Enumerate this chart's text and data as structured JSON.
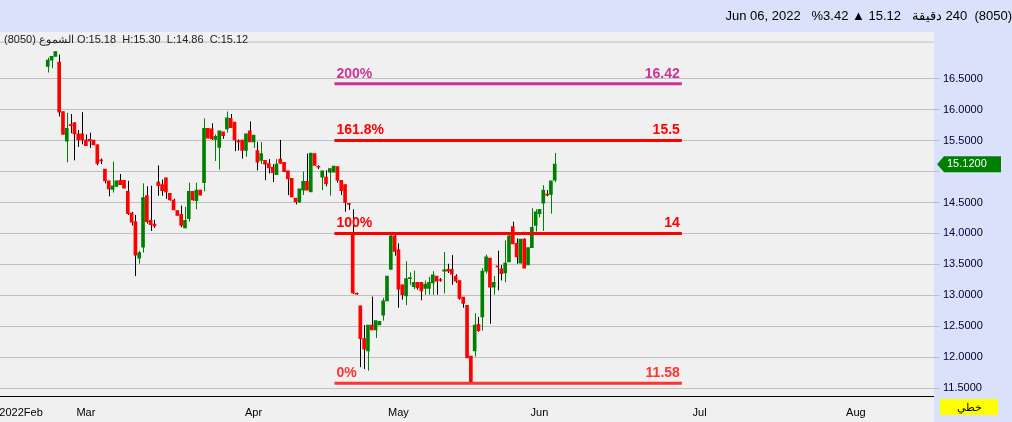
{
  "chart_data": {
    "type": "candlestick",
    "title": "(8050)  240 دقيقة   15.12 ▲ 3.42%   Jun 06, 2022",
    "subtitle": "الشموع (8050) O:15.18  H:15.30  L:14.86  C:15.12",
    "categories": [
      null,
      null,
      null,
      null,
      null,
      "2022Feb",
      null,
      null,
      null,
      null,
      null,
      null,
      null,
      null,
      null,
      null,
      null,
      null,
      null,
      null,
      null,
      null,
      "Mar",
      null,
      null,
      null,
      null,
      null,
      null,
      null,
      null,
      null,
      null,
      null,
      null,
      null,
      null,
      null,
      null,
      null,
      null,
      null,
      null,
      null,
      null,
      null,
      null,
      null,
      null,
      null,
      null,
      null,
      null,
      null,
      null,
      null,
      null,
      null,
      null,
      null,
      null,
      null,
      null,
      null,
      null,
      null,
      "Apr",
      null,
      null,
      null,
      null,
      null,
      null,
      null,
      null,
      null,
      null,
      null,
      null,
      null,
      null,
      null,
      null,
      null,
      null,
      null,
      null,
      null,
      null,
      null,
      null,
      null,
      null,
      null,
      null,
      null,
      null,
      null,
      null,
      null,
      null,
      null,
      null,
      null,
      "May",
      null,
      null,
      null,
      null,
      null,
      null,
      null,
      null,
      null,
      null,
      null,
      null,
      null,
      null,
      null,
      null,
      null,
      null,
      null,
      null,
      null,
      null,
      null,
      null,
      null,
      null,
      null,
      null,
      null,
      null,
      null,
      null,
      null,
      null,
      null,
      null,
      "Jun",
      null,
      null,
      null,
      null,
      null,
      null,
      null,
      null,
      null,
      null,
      null,
      null,
      null,
      null,
      null,
      null,
      null,
      null,
      null,
      null,
      null,
      null,
      null,
      null,
      null,
      null,
      null,
      null,
      null,
      null,
      null,
      null,
      null,
      null,
      null,
      null,
      null,
      null,
      null,
      null,
      null,
      "Jul",
      null,
      null,
      null,
      null,
      null,
      null,
      null,
      null,
      null,
      null,
      null,
      null,
      null,
      null,
      null,
      null,
      null,
      null,
      null,
      null,
      null,
      null,
      null,
      null,
      null,
      null,
      null,
      null,
      null,
      null,
      null,
      null,
      null,
      null,
      null,
      null,
      null,
      null,
      null,
      null,
      "Aug",
      null,
      null,
      null,
      null,
      null,
      null,
      null,
      null,
      null,
      null,
      null,
      null,
      null,
      null,
      null,
      null,
      null,
      null,
      null,
      null
    ],
    "ohlc": [
      null,
      null,
      null,
      null,
      null,
      null,
      null,
      null,
      null,
      null,
      null,
      null,
      [
        16.7,
        16.84,
        16.6,
        16.8
      ],
      [
        16.8,
        16.86,
        16.67,
        16.86
      ],
      [
        16.86,
        16.94,
        16.86,
        16.94
      ],
      [
        16.77,
        16.89,
        15.89,
        15.96
      ],
      [
        15.97,
        15.97,
        15.6,
        15.6
      ],
      [
        15.49,
        15.95,
        15.15,
        15.7
      ],
      [
        15.76,
        15.93,
        15.62,
        15.74
      ],
      [
        15.79,
        15.79,
        15.18,
        15.61
      ],
      [
        15.61,
        15.67,
        15.4,
        15.51
      ],
      [
        15.61,
        15.96,
        15.44,
        15.51
      ],
      [
        15.51,
        15.6,
        15.42,
        15.42
      ],
      [
        15.52,
        15.63,
        15.38,
        15.49
      ],
      [
        15.51,
        15.51,
        15.43,
        15.43
      ],
      [
        15.43,
        15.44,
        15.1,
        15.13
      ],
      [
        15.19,
        15.21,
        15.12,
        15.17
      ],
      [
        15.04,
        15.04,
        14.81,
        14.85
      ],
      [
        14.85,
        14.85,
        14.6,
        14.72
      ],
      [
        14.71,
        15.16,
        14.66,
        14.77
      ],
      [
        14.76,
        14.85,
        14.76,
        14.85
      ],
      [
        14.86,
        14.96,
        14.79,
        14.79
      ],
      [
        14.86,
        14.86,
        14.73,
        14.73
      ],
      [
        14.68,
        14.85,
        14.3,
        14.32
      ],
      [
        14.33,
        14.35,
        14.13,
        14.18
      ],
      [
        14.19,
        14.3,
        13.31,
        13.65
      ],
      [
        13.6,
        13.72,
        13.51,
        13.69
      ],
      [
        13.78,
        14.81,
        13.69,
        14.58
      ],
      [
        14.61,
        14.76,
        14.16,
        14.19
      ],
      [
        14.21,
        14.77,
        14.04,
        14.14
      ],
      [
        14.15,
        14.22,
        14.09,
        14.12
      ],
      [
        14.83,
        15.1,
        14.61,
        14.77
      ],
      [
        14.79,
        14.87,
        14.61,
        14.69
      ],
      [
        14.9,
        14.9,
        14.56,
        14.67
      ],
      [
        14.65,
        14.65,
        14.53,
        14.54
      ],
      [
        14.54,
        14.56,
        14.38,
        14.38
      ],
      [
        14.37,
        14.37,
        14.29,
        14.29
      ],
      [
        14.31,
        14.45,
        14.1,
        14.13
      ],
      [
        14.09,
        14.43,
        14.08,
        14.21
      ],
      [
        14.24,
        14.82,
        14.19,
        14.68
      ],
      [
        14.68,
        14.68,
        14.53,
        14.54
      ],
      [
        14.53,
        14.82,
        14.39,
        14.7
      ],
      [
        14.7,
        14.7,
        14.62,
        14.62
      ],
      [
        14.82,
        15.86,
        14.68,
        15.7
      ],
      [
        15.7,
        15.7,
        15.54,
        15.54
      ],
      [
        15.69,
        15.78,
        15.51,
        15.53
      ],
      [
        15.52,
        15.6,
        15.17,
        15.57
      ],
      [
        15.39,
        15.66,
        15.03,
        15.66
      ],
      [
        15.64,
        15.64,
        15.53,
        15.58
      ],
      [
        15.69,
        15.97,
        15.63,
        15.87
      ],
      [
        15.86,
        15.93,
        15.71,
        15.71
      ],
      [
        15.8,
        15.8,
        15.33,
        15.51
      ],
      [
        15.5,
        15.52,
        15.34,
        15.48
      ],
      [
        15.51,
        15.51,
        15.21,
        15.34
      ],
      [
        15.34,
        15.61,
        15.24,
        15.61
      ],
      [
        15.66,
        15.81,
        15.48,
        15.48
      ],
      [
        15.48,
        15.59,
        15.38,
        15.59
      ],
      [
        15.34,
        15.48,
        15.02,
        15.15
      ],
      [
        15.18,
        15.48,
        15.12,
        15.29
      ],
      [
        15.18,
        15.18,
        14.86,
        15.12
      ],
      [
        15.13,
        15.2,
        14.97,
        15.06
      ],
      [
        15.07,
        15.12,
        14.83,
        14.98
      ],
      [
        14.95,
        15.2,
        14.95,
        15.12
      ],
      [
        15.2,
        15.51,
        15.13,
        15.13
      ],
      [
        15.15,
        15.15,
        14.99,
        15.0
      ],
      [
        15.01,
        15.01,
        14.62,
        14.88
      ],
      [
        14.89,
        14.89,
        14.59,
        14.59
      ],
      [
        14.57,
        14.57,
        14.47,
        14.51
      ],
      [
        14.51,
        14.72,
        14.49,
        14.72
      ],
      [
        14.7,
        15.0,
        14.62,
        14.84
      ],
      [
        14.84,
        15.29,
        14.7,
        14.7
      ],
      [
        14.67,
        15.3,
        14.67,
        15.3
      ],
      [
        15.29,
        15.29,
        15.1,
        15.1
      ],
      [
        15.08,
        15.1,
        15.04,
        15.07
      ],
      [
        14.91,
        15.01,
        14.7,
        15.01
      ],
      [
        14.91,
        15.02,
        14.76,
        14.8
      ],
      [
        14.99,
        15.05,
        14.61,
        15.05
      ],
      [
        14.99,
        15.09,
        14.99,
        15.09
      ],
      [
        15.08,
        15.08,
        14.82,
        14.86
      ],
      [
        14.86,
        14.86,
        14.62,
        14.69
      ],
      [
        14.79,
        14.79,
        14.35,
        14.5
      ],
      [
        14.48,
        14.49,
        14.38,
        14.47
      ],
      [
        14.0,
        14.39,
        13.02,
        13.04
      ],
      [
        13.03,
        13.04,
        13.01,
        13.02
      ],
      [
        12.83,
        12.83,
        11.84,
        12.3
      ],
      [
        12.3,
        12.52,
        11.81,
        12.13
      ],
      [
        12.1,
        12.52,
        11.78,
        12.52
      ],
      [
        12.52,
        12.98,
        12.44,
        12.44
      ],
      [
        12.44,
        12.59,
        12.31,
        12.59
      ],
      [
        12.52,
        12.58,
        12.52,
        12.58
      ],
      [
        12.68,
        12.96,
        12.59,
        12.91
      ],
      [
        12.91,
        13.31,
        12.91,
        13.31
      ],
      [
        13.42,
        13.98,
        13.42,
        13.96
      ],
      [
        13.96,
        13.98,
        13.64,
        13.71
      ],
      [
        13.74,
        13.84,
        12.8,
        13.1
      ],
      [
        13.17,
        13.17,
        12.93,
        13.01
      ],
      [
        12.99,
        13.55,
        12.84,
        13.27
      ],
      [
        13.27,
        13.37,
        13.17,
        13.28
      ],
      [
        13.14,
        13.4,
        13.1,
        13.21
      ],
      [
        13.21,
        13.21,
        13.09,
        13.12
      ],
      [
        13.21,
        13.21,
        12.92,
        13.07
      ],
      [
        13.11,
        13.24,
        13.01,
        13.18
      ],
      [
        13.11,
        13.3,
        13.01,
        13.21
      ],
      [
        13.2,
        13.39,
        13.01,
        13.33
      ],
      [
        13.31,
        13.31,
        13.01,
        13.23
      ],
      [
        13.25,
        13.28,
        13.22,
        13.24
      ],
      [
        13.39,
        13.7,
        13.03,
        13.41
      ],
      [
        13.42,
        13.51,
        13.36,
        13.39
      ],
      [
        13.42,
        13.65,
        13.17,
        13.34
      ],
      [
        13.31,
        13.34,
        13.2,
        13.23
      ],
      [
        13.24,
        13.24,
        12.93,
        12.95
      ],
      [
        12.97,
        12.97,
        12.8,
        12.87
      ],
      [
        12.84,
        12.84,
        11.99,
        11.99
      ],
      [
        12.02,
        12.02,
        11.58,
        11.59
      ],
      [
        12.1,
        12.71,
        12.01,
        12.52
      ],
      [
        12.53,
        12.65,
        12.41,
        12.43
      ],
      [
        12.65,
        13.44,
        12.43,
        13.39
      ],
      [
        13.39,
        13.66,
        13.35,
        13.62
      ],
      [
        13.6,
        13.6,
        12.54,
        13.13
      ],
      [
        13.13,
        13.31,
        13.01,
        13.21
      ],
      [
        13.47,
        13.72,
        13.08,
        13.46
      ],
      [
        13.43,
        13.49,
        13.24,
        13.35
      ],
      [
        13.36,
        13.89,
        13.21,
        13.52
      ],
      [
        13.54,
        13.98,
        13.54,
        13.96
      ],
      [
        14.11,
        14.19,
        13.83,
        13.83
      ],
      [
        13.84,
        13.92,
        13.51,
        13.62
      ],
      [
        13.52,
        13.91,
        13.52,
        13.91
      ],
      [
        13.91,
        13.92,
        13.44,
        13.44
      ],
      [
        13.49,
        13.77,
        13.49,
        13.77
      ],
      [
        13.77,
        14.41,
        13.77,
        14.1
      ],
      [
        14.13,
        14.39,
        14.03,
        14.35
      ],
      [
        14.32,
        14.39,
        14.26,
        14.39
      ],
      [
        14.49,
        14.78,
        14.04,
        14.7
      ],
      [
        14.63,
        14.7,
        14.6,
        14.62
      ],
      [
        14.63,
        14.85,
        14.32,
        14.85
      ],
      [
        14.86,
        15.3,
        14.83,
        15.12
      ],
      null,
      null,
      null,
      null,
      null,
      null,
      null,
      null,
      null,
      null,
      null,
      null,
      null,
      null,
      null,
      null,
      null,
      null,
      null,
      null,
      null,
      null,
      null,
      null,
      null,
      null,
      null,
      null,
      null,
      null,
      null,
      null,
      null,
      null,
      null,
      null,
      null,
      null,
      null,
      null,
      null,
      null,
      null,
      null,
      null,
      null,
      null,
      null,
      null,
      null,
      null,
      null,
      null,
      null,
      null,
      null,
      null,
      null,
      null,
      null,
      null,
      null,
      null,
      null,
      null,
      null,
      null,
      null,
      null,
      null,
      null,
      null,
      null,
      null,
      null,
      null,
      null,
      null,
      null,
      null,
      null,
      null,
      null,
      null,
      null,
      null,
      null,
      null,
      null,
      null,
      null,
      null,
      null,
      null,
      null,
      null,
      null,
      null,
      null
    ],
    "ylim": [
      11.36,
      17.1
    ],
    "yticks": [
      {
        "value": 11.5,
        "label": "11.5000"
      },
      {
        "value": 12,
        "label": "12.0000"
      },
      {
        "value": 12.5,
        "label": "12.5000"
      },
      {
        "value": 13,
        "label": "13.0000"
      },
      {
        "value": 13.5,
        "label": "13.5000"
      },
      {
        "value": 14,
        "label": "14.0000"
      },
      {
        "value": 14.5,
        "label": "14.5000"
      },
      {
        "value": 15,
        "label": null
      },
      {
        "value": 15.5,
        "label": "15.5000"
      },
      {
        "value": 16,
        "label": "16.0000"
      },
      {
        "value": 16.5,
        "label": "16.5000"
      }
    ],
    "grid": "y",
    "ref_lines": [
      {
        "axis": "y",
        "value": 16.42,
        "label": "16.42",
        "color": "#cc3399"
      },
      {
        "axis": "y",
        "value": 15.5,
        "label": "15.5",
        "color": "#ff0000"
      },
      {
        "axis": "y",
        "value": 14,
        "label": "14",
        "color": "#ff0000"
      },
      {
        "axis": "y",
        "value": 11.58,
        "label": "11.58",
        "color": "#ff3333"
      }
    ],
    "annotations": [
      "15.1200",
      "خطي",
      {
        "text": "200%",
        "y": 16.42
      },
      {
        "text": "161.8%",
        "y": 15.5
      },
      {
        "text": "100%",
        "y": 14
      },
      {
        "text": "0%",
        "y": 11.58
      }
    ]
  }
}
